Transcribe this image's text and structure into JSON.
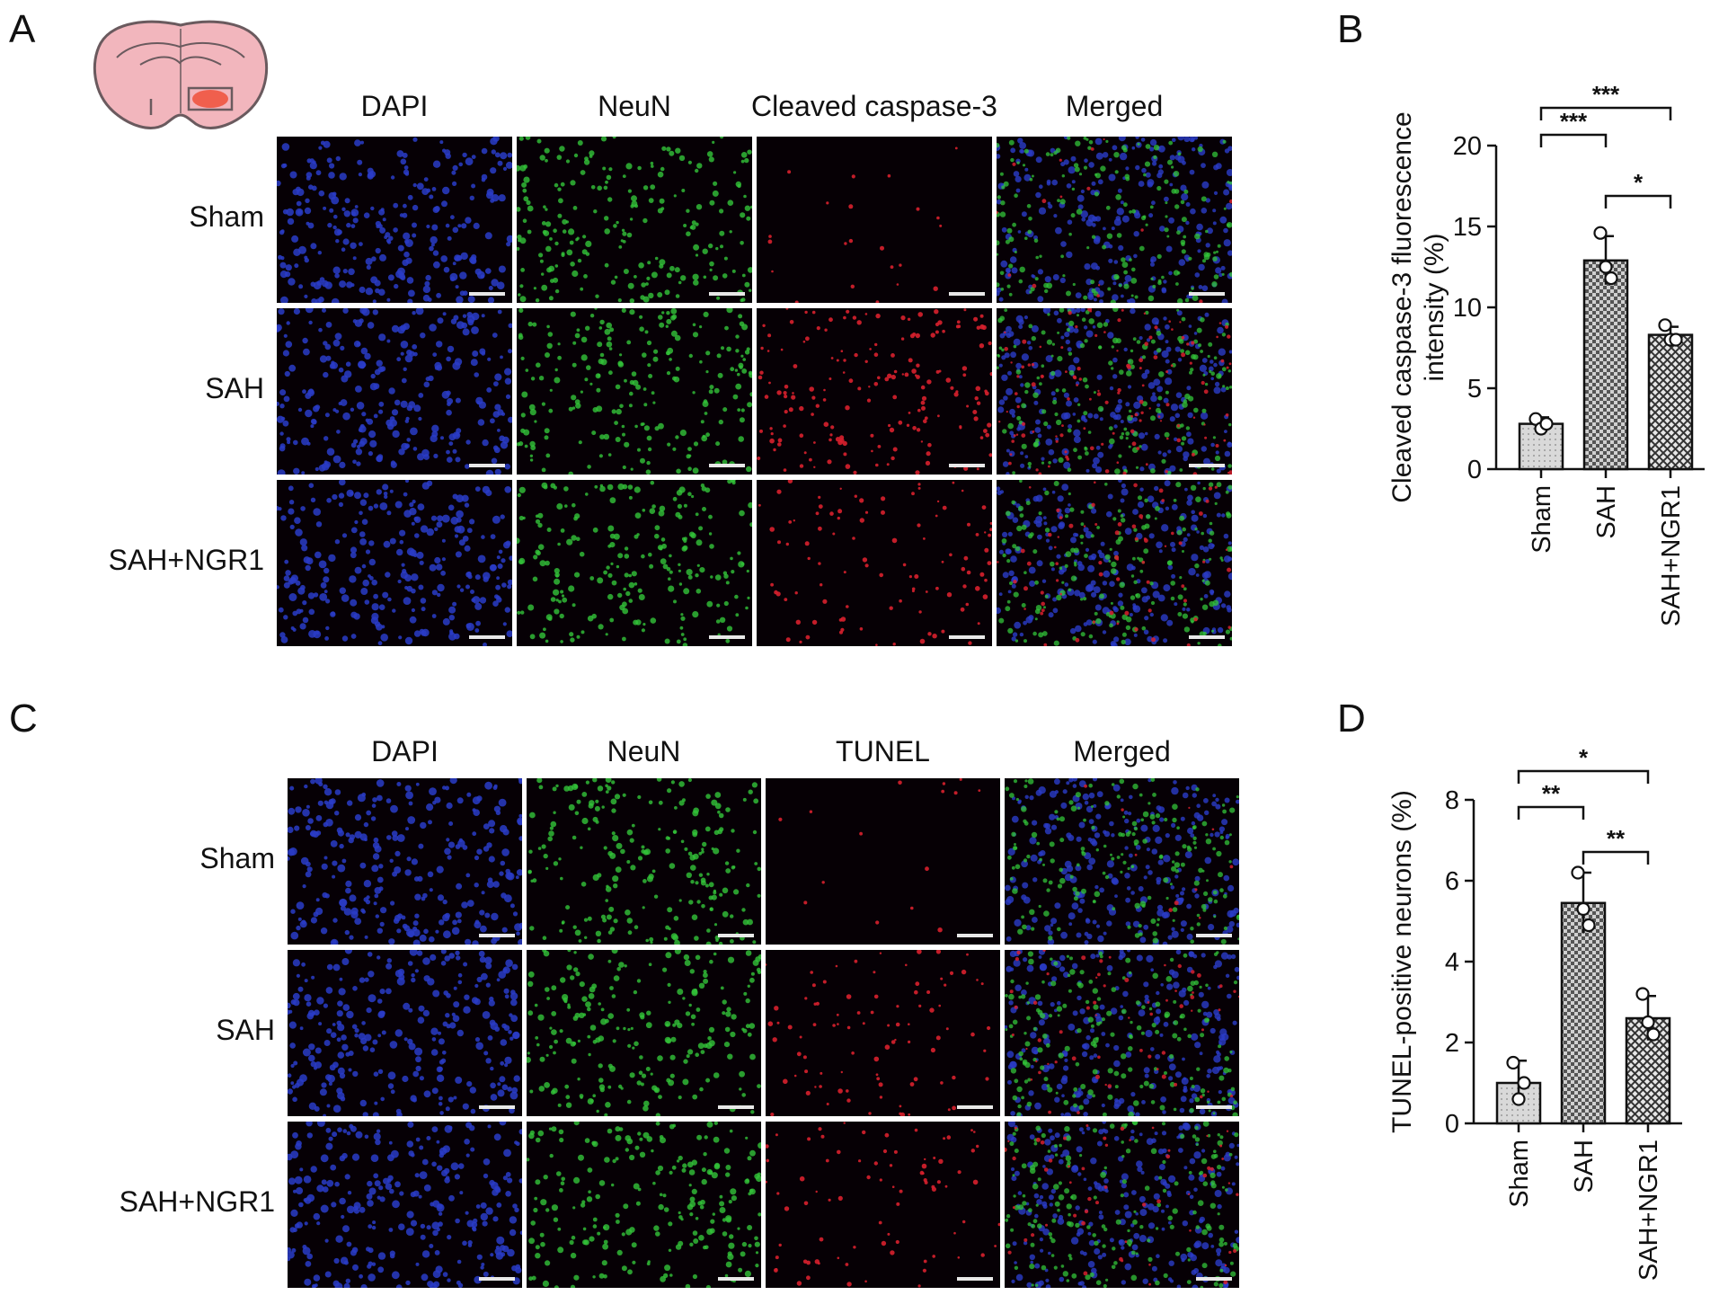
{
  "panels": {
    "A": {
      "letter": "A",
      "columns": [
        "DAPI",
        "NeuN",
        "Cleaved caspase-3",
        "Merged"
      ],
      "rows": [
        "Sham",
        "SAH",
        "SAH+NGR1"
      ]
    },
    "B": {
      "letter": "B"
    },
    "C": {
      "letter": "C",
      "columns": [
        "DAPI",
        "NeuN",
        "TUNEL",
        "Merged"
      ],
      "rows": [
        "Sham",
        "SAH",
        "SAH+NGR1"
      ]
    },
    "D": {
      "letter": "D"
    }
  },
  "colors": {
    "dapi": "#2a3cc8",
    "neun": "#33c43a",
    "red": "#d8202e",
    "tile_bg": "#060005",
    "brain_fill": "#f2b6bd",
    "brain_outline": "#6a5a5e",
    "lesion": "#f0503a",
    "bar_sham": "#d9d9d9",
    "bar_sah": "#808080",
    "bar_ngr1": "#a6a6a6"
  },
  "chart_data": [
    {
      "type": "bar",
      "panel": "B",
      "ylabel": "Cleaved caspase-3 fluorescence intensity (%)",
      "categories": [
        "Sham",
        "SAH",
        "SAH+NGR1"
      ],
      "values": [
        2.8,
        12.9,
        8.3
      ],
      "errors": [
        0.4,
        1.5,
        0.5
      ],
      "points": [
        [
          3.1,
          2.5,
          2.8
        ],
        [
          14.6,
          12.5,
          11.8
        ],
        [
          8.9,
          8.0,
          8.0
        ]
      ],
      "ylim": [
        0,
        20
      ],
      "yticks": [
        "0",
        "5",
        "10",
        "15",
        "20"
      ],
      "significance": [
        {
          "from": 0,
          "to": 1,
          "label": "***"
        },
        {
          "from": 0,
          "to": 2,
          "label": "***"
        },
        {
          "from": 1,
          "to": 2,
          "label": "*"
        }
      ]
    },
    {
      "type": "bar",
      "panel": "D",
      "ylabel": "TUNEL-positive neurons (%)",
      "categories": [
        "Sham",
        "SAH",
        "SAH+NGR1"
      ],
      "values": [
        1.0,
        5.45,
        2.6
      ],
      "errors": [
        0.55,
        0.75,
        0.55
      ],
      "points": [
        [
          1.5,
          0.6,
          1.0
        ],
        [
          6.2,
          5.3,
          4.9
        ],
        [
          3.2,
          2.5,
          2.2
        ]
      ],
      "ylim": [
        0,
        8
      ],
      "yticks": [
        "0",
        "2",
        "4",
        "6",
        "8"
      ],
      "significance": [
        {
          "from": 0,
          "to": 1,
          "label": "**"
        },
        {
          "from": 0,
          "to": 2,
          "label": "*"
        },
        {
          "from": 1,
          "to": 2,
          "label": "**"
        }
      ]
    }
  ]
}
